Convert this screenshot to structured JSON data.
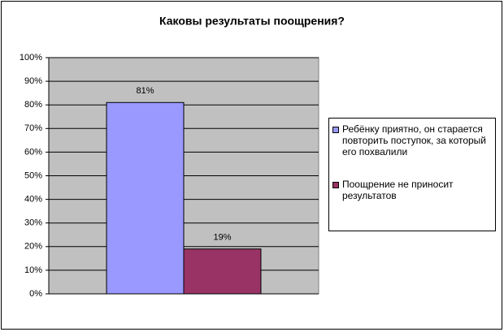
{
  "chart_data": {
    "type": "bar",
    "title": "Каковы результаты поощрения?",
    "categories": [
      null
    ],
    "series": [
      {
        "name": "Ребёнку приятно, он старается повторить поступок, за который его похвалили",
        "color": "#9999ff",
        "values": [
          81
        ],
        "value_labels": [
          "81%"
        ]
      },
      {
        "name": "Поощрение не приносит результатов",
        "color": "#993366",
        "values": [
          19
        ],
        "value_labels": [
          "19%"
        ]
      }
    ],
    "ylim": [
      0,
      100
    ],
    "yticks": [
      {
        "value": 0,
        "label": "0%"
      },
      {
        "value": 10,
        "label": "10%"
      },
      {
        "value": 20,
        "label": "20%"
      },
      {
        "value": 30,
        "label": "30%"
      },
      {
        "value": 40,
        "label": "40%"
      },
      {
        "value": 50,
        "label": "50%"
      },
      {
        "value": 60,
        "label": "60%"
      },
      {
        "value": 70,
        "label": "70%"
      },
      {
        "value": 80,
        "label": "80%"
      },
      {
        "value": 90,
        "label": "90%"
      },
      {
        "value": 100,
        "label": "100%"
      }
    ],
    "grid": true,
    "legend": "right"
  }
}
